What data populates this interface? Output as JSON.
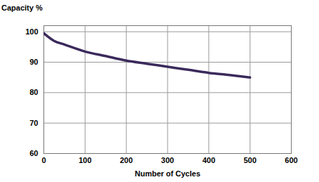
{
  "chart_data": {
    "type": "line",
    "y_label": "Capacity %",
    "x_label": "Number of Cycles",
    "x": [
      0,
      25,
      50,
      100,
      150,
      200,
      250,
      300,
      350,
      400,
      450,
      500
    ],
    "values": [
      99.5,
      97,
      95.8,
      93.5,
      92,
      90.5,
      89.5,
      88.5,
      87.5,
      86.5,
      85.8,
      85
    ],
    "color": "#3b2a5c",
    "xlim": [
      0,
      600
    ],
    "xticks": [
      0,
      100,
      200,
      300,
      400,
      500,
      600
    ],
    "ylim": [
      60,
      102
    ],
    "yticks": [
      60,
      70,
      80,
      90,
      100
    ],
    "grid": true
  }
}
